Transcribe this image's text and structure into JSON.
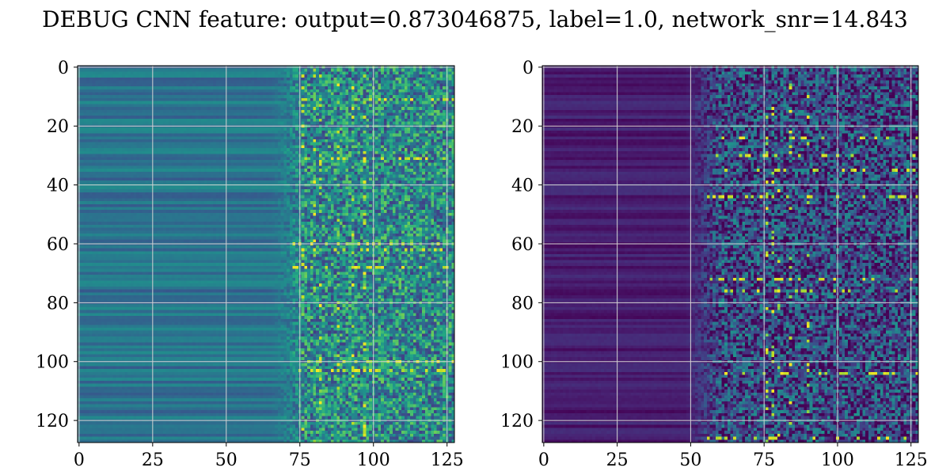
{
  "figure": {
    "title": "DEBUG CNN feature: output=0.873046875, label=1.0, network_snr=14.843"
  },
  "chart_data": [
    {
      "type": "heatmap",
      "id": "left-panel",
      "colormap": "viridis",
      "rows": 128,
      "cols": 128,
      "xlim": [
        -0.5,
        127.5
      ],
      "ylim": [
        127.5,
        -0.5
      ],
      "xticks": [
        0,
        25,
        50,
        75,
        100,
        125
      ],
      "xtick_labels": [
        "0",
        "25",
        "50",
        "75",
        "100",
        "125"
      ],
      "yticks": [
        0,
        20,
        40,
        60,
        80,
        100,
        120
      ],
      "ytick_labels": [
        "0",
        "20",
        "40",
        "60",
        "80",
        "100",
        "120"
      ],
      "grid": true,
      "pattern": {
        "smooth_region_cols": [
          0,
          65
        ],
        "noisy_region_cols": [
          65,
          127
        ],
        "smooth_base_value": 0.38,
        "smooth_row_variation": 0.1,
        "noisy_mean_value": 0.48,
        "noisy_spread": 0.3,
        "bright_rows": [
          11,
          31,
          60,
          62,
          68,
          100,
          103
        ],
        "bright_cols": [
          76,
          80,
          82,
          88,
          93,
          97
        ]
      }
    },
    {
      "type": "heatmap",
      "id": "right-panel",
      "colormap": "viridis",
      "rows": 128,
      "cols": 128,
      "xlim": [
        -0.5,
        127.5
      ],
      "ylim": [
        127.5,
        -0.5
      ],
      "xticks": [
        0,
        25,
        50,
        75,
        100,
        125
      ],
      "xtick_labels": [
        "0",
        "25",
        "50",
        "75",
        "100",
        "125"
      ],
      "yticks": [
        0,
        20,
        40,
        60,
        80,
        100,
        120
      ],
      "ytick_labels": [
        "0",
        "20",
        "40",
        "60",
        "80",
        "100",
        "120"
      ],
      "grid": true,
      "pattern": {
        "smooth_region_cols": [
          0,
          48
        ],
        "noisy_region_cols": [
          48,
          127
        ],
        "smooth_base_value": 0.08,
        "smooth_row_variation": 0.06,
        "noisy_mean_value": 0.22,
        "noisy_spread": 0.3,
        "bright_rows": [
          24,
          30,
          35,
          44,
          72,
          76,
          104,
          126
        ],
        "bright_cols": [
          76,
          78,
          80,
          84,
          90
        ]
      }
    }
  ]
}
